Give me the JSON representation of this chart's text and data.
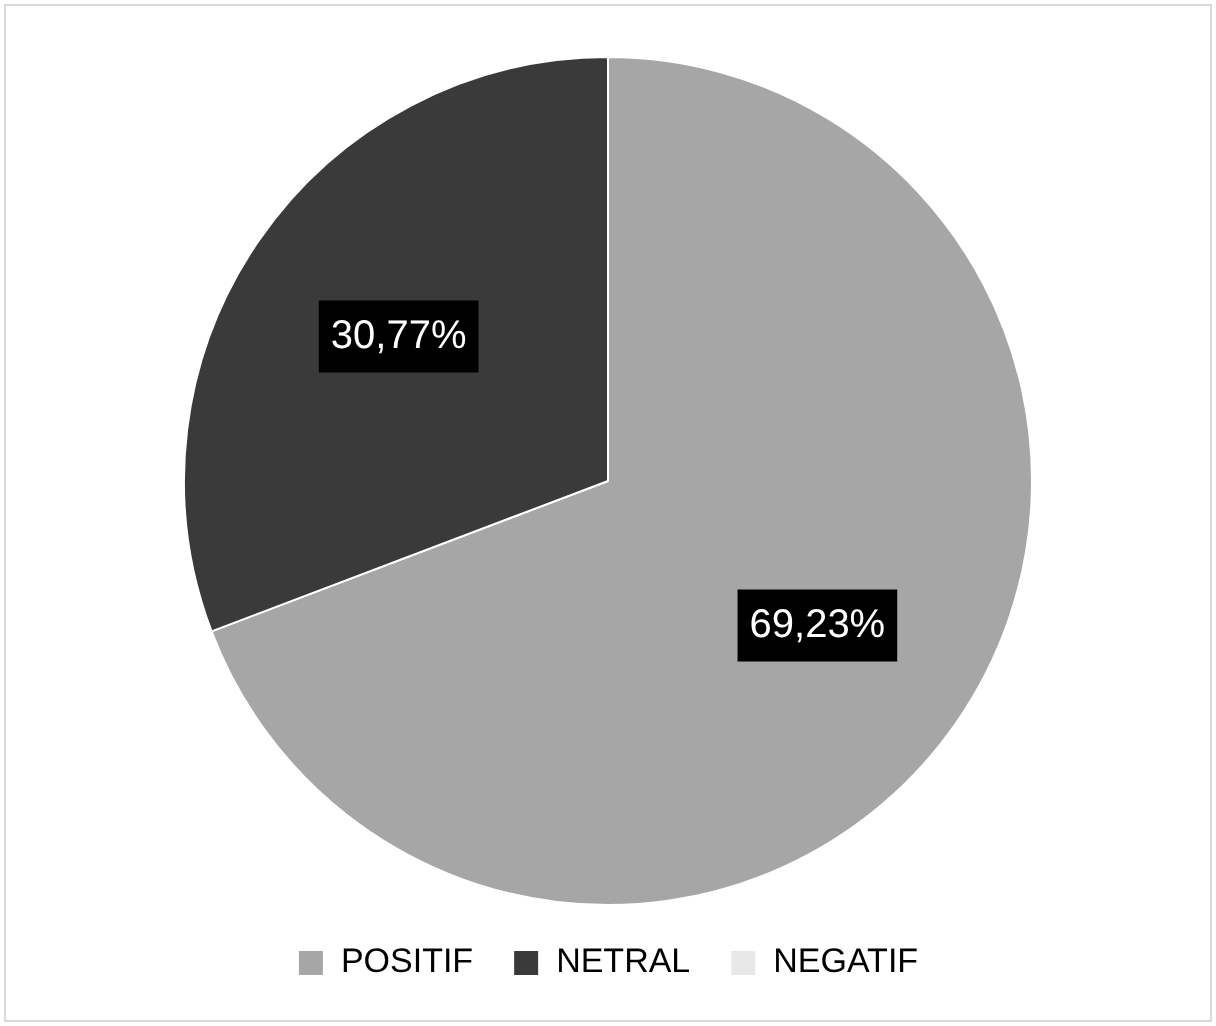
{
  "chart_data": {
    "type": "pie",
    "categories": [
      "POSITIF",
      "NETRAL",
      "NEGATIF"
    ],
    "values": [
      69.23,
      30.77,
      0
    ],
    "value_labels": [
      "69,23%",
      "30,77%",
      null
    ],
    "colors": [
      "#a6a6a6",
      "#3a3a3a",
      "#e8e8e8"
    ],
    "legend": "bottom"
  }
}
